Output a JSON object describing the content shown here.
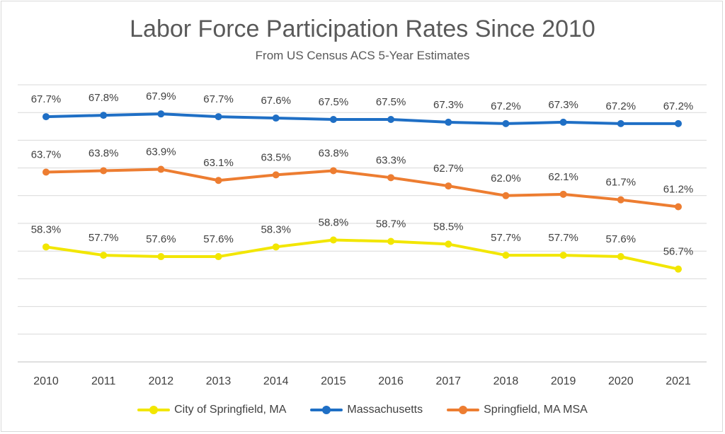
{
  "chart_data": {
    "type": "line",
    "title": "Labor Force Participation Rates Since 2010",
    "subtitle": "From US Census ACS 5-Year Estimates",
    "x": [
      "2010",
      "2011",
      "2012",
      "2013",
      "2014",
      "2015",
      "2016",
      "2017",
      "2018",
      "2019",
      "2020",
      "2021"
    ],
    "ylim": [
      50,
      70
    ],
    "grid": true,
    "legend_position": "bottom",
    "series": [
      {
        "name": "City of Springfield, MA",
        "color": "#f2e600",
        "values": [
          58.3,
          57.7,
          57.6,
          57.6,
          58.3,
          58.8,
          58.7,
          58.5,
          57.7,
          57.7,
          57.6,
          56.7
        ],
        "labels": [
          "58.3%",
          "57.7%",
          "57.6%",
          "57.6%",
          "58.3%",
          "58.8%",
          "58.7%",
          "58.5%",
          "57.7%",
          "57.7%",
          "57.6%",
          "56.7%"
        ]
      },
      {
        "name": "Massachusetts",
        "color": "#1f6fc5",
        "values": [
          67.7,
          67.8,
          67.9,
          67.7,
          67.6,
          67.5,
          67.5,
          67.3,
          67.2,
          67.3,
          67.2,
          67.2
        ],
        "labels": [
          "67.7%",
          "67.8%",
          "67.9%",
          "67.7%",
          "67.6%",
          "67.5%",
          "67.5%",
          "67.3%",
          "67.2%",
          "67.3%",
          "67.2%",
          "67.2%"
        ]
      },
      {
        "name": "Springfield, MA MSA",
        "color": "#ed7d31",
        "values": [
          63.7,
          63.8,
          63.9,
          63.1,
          63.5,
          63.8,
          63.3,
          62.7,
          62.0,
          62.1,
          61.7,
          61.2
        ],
        "labels": [
          "63.7%",
          "63.8%",
          "63.9%",
          "63.1%",
          "63.5%",
          "63.8%",
          "63.3%",
          "62.7%",
          "62.0%",
          "62.1%",
          "61.7%",
          "61.2%"
        ]
      }
    ]
  }
}
